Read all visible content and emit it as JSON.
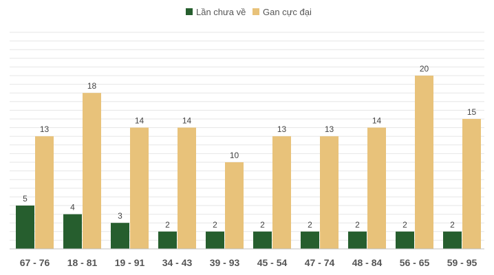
{
  "colors": {
    "series_0": "#265e2e",
    "series_1": "#e8c27a",
    "grid": "#e6e6e6",
    "axis": "#bdbdbd"
  },
  "chart_data": {
    "type": "bar",
    "title": "",
    "xlabel": "",
    "ylabel": "",
    "ylim": [
      0,
      25
    ],
    "grid": true,
    "legend_position": "top-center",
    "categories": [
      "67 - 76",
      "18 - 81",
      "19 - 91",
      "34 - 43",
      "39 - 93",
      "45 - 54",
      "47 - 74",
      "48 - 84",
      "56 - 65",
      "59 - 95"
    ],
    "series": [
      {
        "name": "Lần chưa về",
        "values": [
          5,
          4,
          3,
          2,
          2,
          2,
          2,
          2,
          2,
          2
        ]
      },
      {
        "name": "Gan cực đại",
        "values": [
          13,
          18,
          14,
          14,
          10,
          13,
          13,
          14,
          20,
          15
        ]
      }
    ]
  }
}
